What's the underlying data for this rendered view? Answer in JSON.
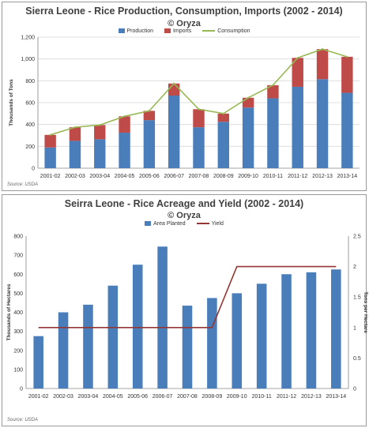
{
  "colors": {
    "production": "#4a7ebb",
    "imports": "#be4b48",
    "consumption": "#98b954",
    "area": "#4a7ebb",
    "yield": "#943634",
    "grid": "#d9d9d9",
    "axis": "#868686"
  },
  "chart_data": [
    {
      "type": "bar",
      "stacked": true,
      "title": "Sierra Leone - Rice Production, Consumption, Imports (2002 - 2014)",
      "subtitle": "© Oryza",
      "ylabel": "Thousands of Tons",
      "xlabel": "",
      "ylim": [
        0,
        1200
      ],
      "yticks": [
        "0",
        "200",
        "400",
        "600",
        "800",
        "1,000",
        "1,200"
      ],
      "ytick_values": [
        0,
        200,
        400,
        600,
        800,
        1000,
        1200
      ],
      "grid": true,
      "legend_position": "top",
      "categories": [
        "2001-02",
        "2002-03",
        "2003-04",
        "2004-05",
        "2005-06",
        "2006-07",
        "2007-08",
        "2008-09",
        "2009-10",
        "2010-11",
        "2011-12",
        "2012-13",
        "2013-14"
      ],
      "series": [
        {
          "name": "Production",
          "kind": "bar",
          "values": [
            190,
            250,
            265,
            325,
            440,
            665,
            375,
            425,
            555,
            640,
            745,
            815,
            690
          ]
        },
        {
          "name": "Imports",
          "kind": "bar",
          "values": [
            115,
            125,
            130,
            150,
            85,
            110,
            165,
            75,
            90,
            120,
            265,
            275,
            330
          ]
        },
        {
          "name": "Consumption",
          "kind": "line",
          "values": [
            305,
            375,
            395,
            475,
            525,
            775,
            540,
            500,
            645,
            760,
            1010,
            1090,
            1020
          ]
        }
      ],
      "source": "Source: USDA"
    },
    {
      "type": "bar",
      "title": "Seirra Leone - Rice Acreage and Yield (2002 - 2014)",
      "subtitle": "© Oryza",
      "ylabel": "Thousands of Hectares",
      "y2label": "Tons per Hectare",
      "xlabel": "",
      "ylim": [
        0,
        800
      ],
      "yticks": [
        "0",
        "100",
        "200",
        "300",
        "400",
        "500",
        "600",
        "700",
        "800"
      ],
      "ytick_values": [
        0,
        100,
        200,
        300,
        400,
        500,
        600,
        700,
        800
      ],
      "y2lim": [
        0,
        2.5
      ],
      "y2ticks": [
        "0",
        "0.5",
        "1",
        "1.5",
        "2",
        "2.5"
      ],
      "y2tick_values": [
        0,
        0.5,
        1,
        1.5,
        2,
        2.5
      ],
      "grid": false,
      "legend_position": "top",
      "categories": [
        "2001-02",
        "2002-03",
        "2003-04",
        "2004-05",
        "2005-06",
        "2006-07",
        "2007-08",
        "2008-09",
        "2009-10",
        "2010-11",
        "2011-12",
        "2012-13",
        "2013-14"
      ],
      "series": [
        {
          "name": "Area Planted",
          "kind": "bar",
          "axis": "left",
          "values": [
            275,
            400,
            440,
            540,
            650,
            745,
            435,
            475,
            500,
            550,
            600,
            610,
            625
          ]
        },
        {
          "name": "Yield",
          "kind": "line",
          "axis": "right",
          "values": [
            1,
            1,
            1,
            1,
            1,
            1,
            1,
            1,
            2,
            2,
            2,
            2,
            2
          ]
        }
      ],
      "source": "Source: USDA"
    }
  ]
}
